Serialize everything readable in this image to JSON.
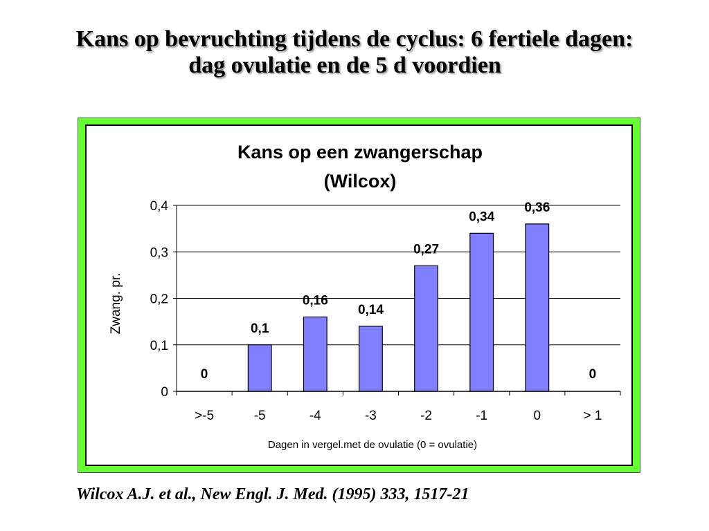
{
  "slide": {
    "title_line1": "Kans op bevruchting tijdens de cyclus: 6 fertiele dagen:",
    "title_line2": "dag ovulatie en de 5 d voordien",
    "citation": "Wilcox A.J. et al., New Engl. J. Med. (1995) 333, 1517-21"
  },
  "chart_data": {
    "type": "bar",
    "title": "Kans op een zwangerschap",
    "subtitle": "(Wilcox)",
    "xlabel": "Dagen in vergel.met de ovulatie (0 = ovulatie)",
    "ylabel": "Zwang. pr.",
    "categories": [
      ">-5",
      "-5",
      "-4",
      "-3",
      "-2",
      "-1",
      "0",
      "> 1"
    ],
    "values": [
      0,
      0.1,
      0.16,
      0.14,
      0.27,
      0.34,
      0.36,
      0
    ],
    "data_labels": [
      "0",
      "0,1",
      "0,16",
      "0,14",
      "0,27",
      "0,34",
      "0,36",
      "0"
    ],
    "ylim": [
      0,
      0.4
    ],
    "yticks": [
      0,
      0.1,
      0.2,
      0.3,
      0.4
    ],
    "ytick_labels": [
      "0",
      "0,1",
      "0,2",
      "0,3",
      "0,4"
    ],
    "grid": true,
    "bar_color": "#8080ff",
    "panel_border_color": "#66ff33"
  }
}
